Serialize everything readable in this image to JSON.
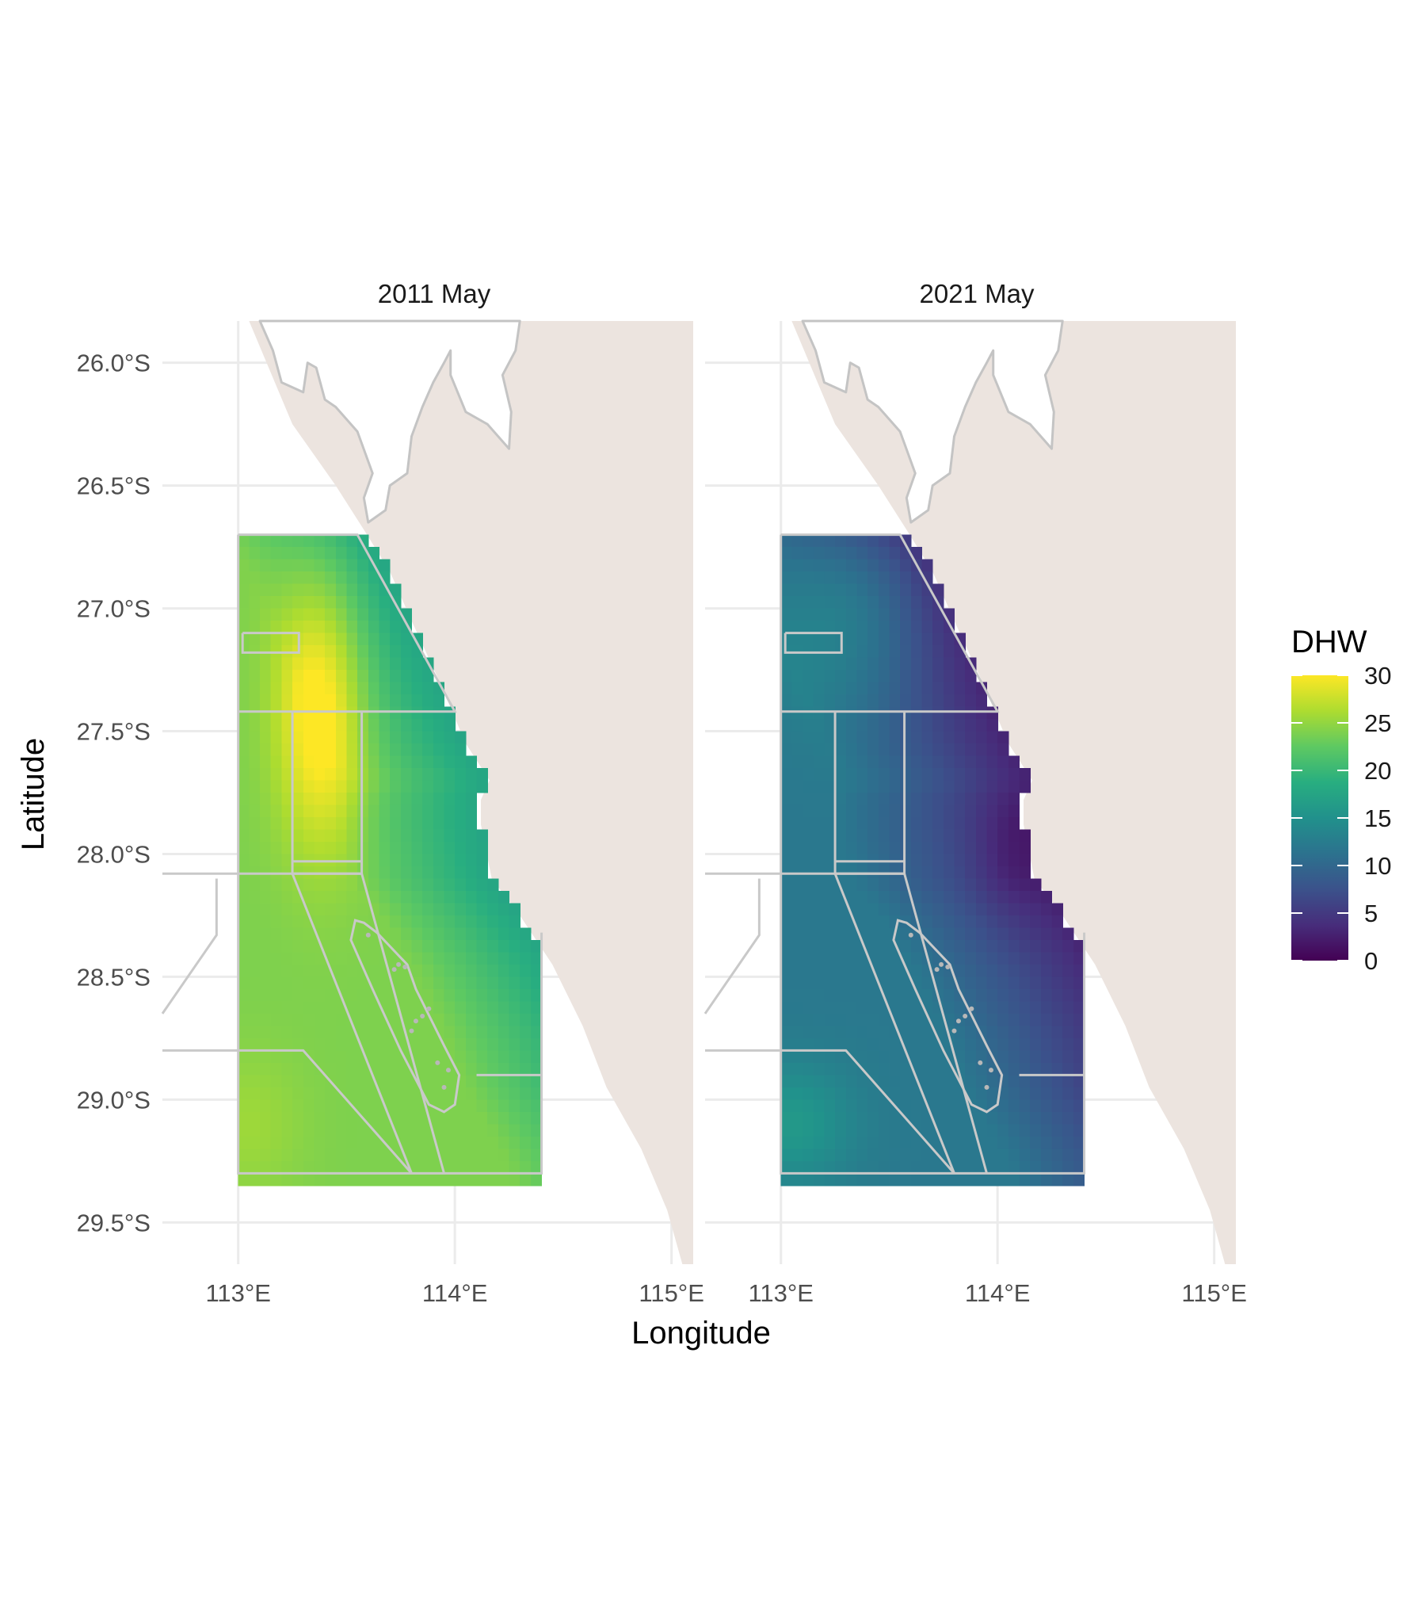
{
  "chart_data": {
    "type": "heatmap",
    "xlabel": "Longitude",
    "ylabel": "Latitude",
    "x_ticks": [
      113,
      114,
      115
    ],
    "x_tick_labels": [
      "113°E",
      "114°E",
      "115°E"
    ],
    "y_ticks": [
      -26.0,
      -26.5,
      -27.0,
      -27.5,
      -28.0,
      -28.5,
      -29.0,
      -29.5
    ],
    "y_tick_labels": [
      "26.0°S",
      "26.5°S",
      "27.0°S",
      "27.5°S",
      "28.0°S",
      "28.5°S",
      "29.0°S",
      "29.5°S"
    ],
    "xlim": [
      112.65,
      115.1
    ],
    "ylim": [
      -29.67,
      -25.83
    ],
    "data_extent": {
      "lon": [
        113.0,
        114.4
      ],
      "lat": [
        -29.3,
        -26.7
      ]
    },
    "legend": {
      "title": "DHW",
      "placement": "right",
      "ticks": [
        0,
        5,
        10,
        15,
        20,
        25,
        30
      ],
      "tick_labels": [
        "0",
        "5",
        "10",
        "15",
        "20",
        "25",
        "30"
      ],
      "range": [
        0,
        30
      ],
      "palette": [
        "#440154",
        "#472d7b",
        "#3b528b",
        "#2c728e",
        "#21918c",
        "#28ae80",
        "#5ec962",
        "#addc30",
        "#fde725"
      ]
    },
    "colors": {
      "land": "#ece4df",
      "boundaries": "#c9c9c9",
      "grid": "#ebebeb"
    },
    "panels": [
      {
        "title": "2011 May",
        "approx_dhw": {
          "max": 30,
          "max_near": [
            113.35,
            -27.3
          ],
          "min_near_coast": 17,
          "southwest": 24
        }
      },
      {
        "title": "2021 May",
        "approx_dhw": {
          "max": 17,
          "max_near": [
            113.3,
            -27.0
          ],
          "min_near_coast": 3,
          "southwest": 16
        }
      }
    ]
  }
}
